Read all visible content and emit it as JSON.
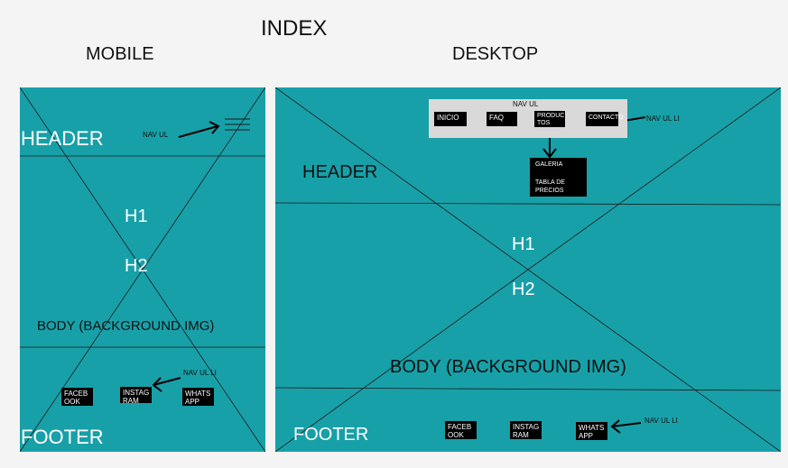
{
  "title": "INDEX",
  "mobile": {
    "heading": "MOBILE",
    "header": "HEADER",
    "nav_annotation": "NAV UL",
    "h1": "H1",
    "h2": "H2",
    "body": "BODY (BACKGROUND IMG)",
    "footer": "FOOTER",
    "footer_nav_annotation": "NAV UL LI",
    "footer_links": [
      "FACEB\nOOK",
      "INSTAG\nRAM",
      "WHATS\nAPP"
    ]
  },
  "desktop": {
    "heading": "DESKTOP",
    "nav_title": "NAV UL",
    "nav_items": [
      "INICIO",
      "FAQ",
      "PRODUC\nTOS",
      "CONTACTO"
    ],
    "nav_annotation": "NAV UL LI",
    "dropdown_items": [
      "GALERIA",
      "TABLA DE\nPRECIOS"
    ],
    "header": "HEADER",
    "h1": "H1",
    "h2": "H2",
    "body": "BODY (BACKGROUND IMG)",
    "footer": "FOOTER",
    "footer_links": [
      "FACEB\nOOK",
      "INSTAG\nRAM",
      "WHATS\nAPP"
    ],
    "footer_nav_annotation": "NAV UL LI"
  },
  "colors": {
    "frame": "#18a0a8",
    "page": "#f4f4f4",
    "block": "#000000",
    "navbox": "#d9d9d9"
  }
}
